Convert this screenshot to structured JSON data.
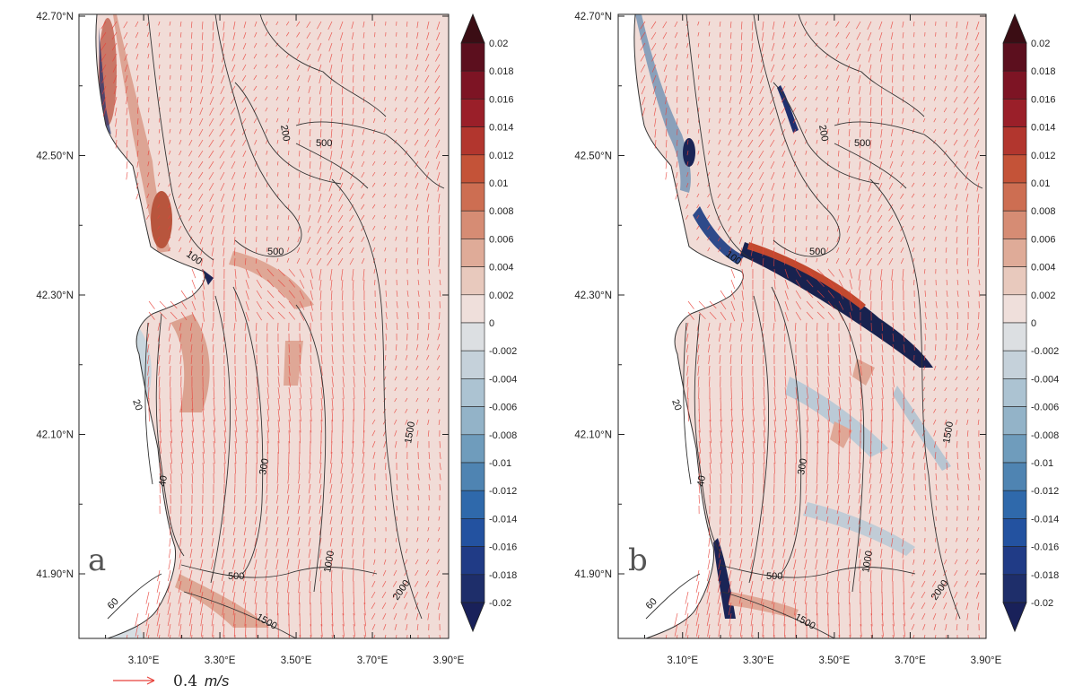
{
  "figure": {
    "panels": [
      {
        "label": "a",
        "x_ticks": [
          "3.10°E",
          "3.30°E",
          "3.50°E",
          "3.70°E",
          "3.90°E"
        ],
        "y_ticks": [
          "42.70°N",
          "42.50°N",
          "42.30°N",
          "42.10°N",
          "41.90°N"
        ],
        "contour_labels": [
          "200",
          "500",
          "100",
          "500",
          "20",
          "40",
          "60",
          "300",
          "500",
          "1000",
          "1500",
          "1500",
          "2000"
        ],
        "colorbar_labels": [
          "0.02",
          "0.018",
          "0.016",
          "0.014",
          "0.012",
          "0.01",
          "0.008",
          "0.006",
          "0.004",
          "0.002",
          "0",
          "-0.002",
          "-0.004",
          "-0.006",
          "-0.008",
          "-0.01",
          "-0.012",
          "-0.014",
          "-0.016",
          "-0.018",
          "-0.02"
        ]
      },
      {
        "label": "b",
        "x_ticks": [
          "3.10°E",
          "3.30°E",
          "3.50°E",
          "3.70°E",
          "3.90°E"
        ],
        "y_ticks": [
          "42.70°N",
          "42.50°N",
          "42.30°N",
          "42.10°N",
          "41.90°N"
        ],
        "contour_labels": [
          "200",
          "500",
          "100",
          "500",
          "20",
          "40",
          "60",
          "300",
          "500",
          "1000",
          "1500",
          "1500",
          "2000"
        ],
        "colorbar_labels": [
          "0.02",
          "0.018",
          "0.016",
          "0.014",
          "0.012",
          "0.01",
          "0.008",
          "0.006",
          "0.004",
          "0.002",
          "0",
          "-0.002",
          "-0.004",
          "-0.006",
          "-0.008",
          "-0.01",
          "-0.012",
          "-0.014",
          "-0.016",
          "-0.018",
          "-0.02"
        ]
      }
    ],
    "reference_vector": {
      "value": "0.4",
      "unit": "m/s",
      "color": "#e8423a"
    },
    "colors": {
      "background_field": "#f1dcd7",
      "land": "#ffffff",
      "vectors": "#e8423a",
      "contours": "#333333"
    }
  }
}
